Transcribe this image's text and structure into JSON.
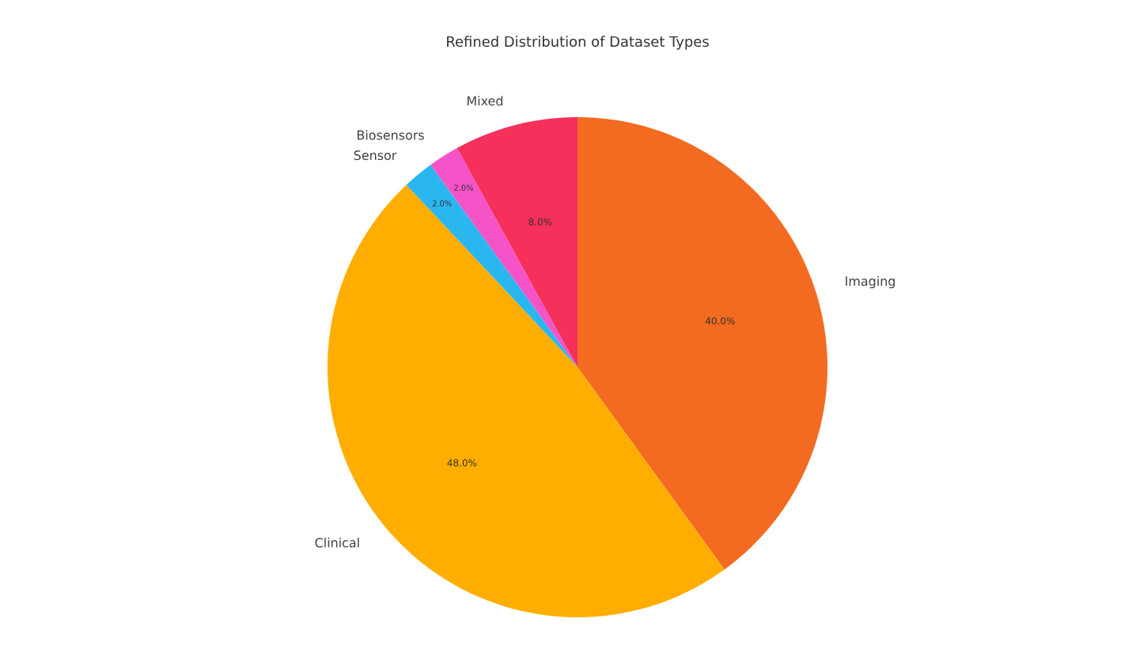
{
  "chart_data": {
    "type": "pie",
    "title": "Refined Distribution of Dataset Types",
    "categories": [
      "Imaging",
      "Clinical",
      "Sensor",
      "Biosensors",
      "Mixed"
    ],
    "values": [
      40.0,
      48.0,
      2.0,
      2.0,
      8.0
    ],
    "colors": [
      "#f26b21",
      "#ffae00",
      "#2ab7f0",
      "#f553c8",
      "#f5305a"
    ],
    "value_labels": [
      "40.0%",
      "48.0%",
      "2.0%",
      "2.0%",
      "8.0%"
    ]
  }
}
